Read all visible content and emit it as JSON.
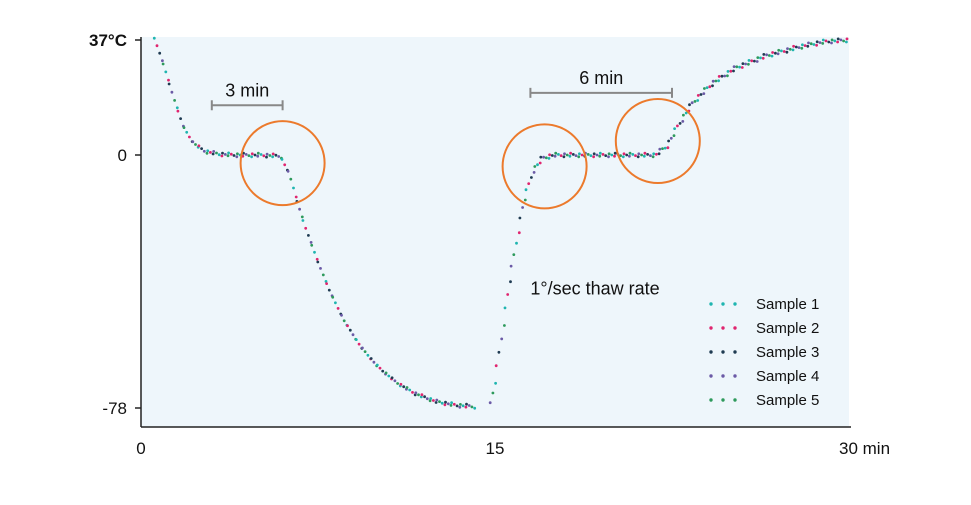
{
  "chart_data": {
    "type": "scatter",
    "title": "",
    "xlabel": "",
    "ylabel": "",
    "x_ticks": [
      {
        "value": 0,
        "label": "0"
      },
      {
        "value": 15,
        "label": "15"
      },
      {
        "value": 30,
        "label": "30 min"
      }
    ],
    "y_ticks": [
      {
        "value": 37,
        "label": "37°C"
      },
      {
        "value": 0,
        "label": "0"
      },
      {
        "value": -78,
        "label": "-78"
      }
    ],
    "xlim": [
      0,
      30
    ],
    "ylim": [
      -78,
      37
    ],
    "grid": false,
    "background_color": "#eef6fb",
    "legend_position": "bottom-right",
    "series": [
      {
        "name": "Sample 1",
        "color": "#1fb5b0"
      },
      {
        "name": "Sample 2",
        "color": "#e0256f"
      },
      {
        "name": "Sample 3",
        "color": "#1f3b52"
      },
      {
        "name": "Sample 4",
        "color": "#6b5aa6"
      },
      {
        "name": "Sample 5",
        "color": "#2e9a5c"
      }
    ],
    "curve_points": [
      [
        0.6,
        37
      ],
      [
        1.0,
        28
      ],
      [
        1.4,
        18
      ],
      [
        1.8,
        9
      ],
      [
        2.2,
        4
      ],
      [
        2.7,
        1.2
      ],
      [
        3.3,
        0.3
      ],
      [
        4.0,
        0
      ],
      [
        5.0,
        0
      ],
      [
        5.9,
        -0.3
      ],
      [
        6.3,
        -6
      ],
      [
        6.6,
        -14
      ],
      [
        7.0,
        -23
      ],
      [
        7.5,
        -33
      ],
      [
        8.0,
        -42
      ],
      [
        8.6,
        -51
      ],
      [
        9.3,
        -59
      ],
      [
        10.0,
        -65
      ],
      [
        10.8,
        -70
      ],
      [
        11.6,
        -73.5
      ],
      [
        12.5,
        -76
      ],
      [
        13.4,
        -77.2
      ],
      [
        14.1,
        -77.5
      ],
      [
        14.8,
        -77.5
      ],
      [
        15.0,
        -70
      ],
      [
        15.3,
        -55
      ],
      [
        15.6,
        -40
      ],
      [
        15.9,
        -27
      ],
      [
        16.2,
        -15
      ],
      [
        16.6,
        -5
      ],
      [
        17.0,
        -1
      ],
      [
        17.5,
        0
      ],
      [
        20.0,
        0
      ],
      [
        21.8,
        0
      ],
      [
        22.3,
        3
      ],
      [
        22.8,
        10
      ],
      [
        23.4,
        17
      ],
      [
        24.2,
        23
      ],
      [
        25.2,
        28
      ],
      [
        26.5,
        32
      ],
      [
        28.0,
        35
      ],
      [
        29.0,
        36.5
      ],
      [
        30.0,
        37
      ]
    ],
    "annotations": [
      {
        "text": "3 min",
        "x_start": 3,
        "x_end": 6,
        "y": 16
      },
      {
        "text": "6 min",
        "x_start": 16.5,
        "x_end": 22.5,
        "y": 20
      },
      {
        "text": "1°/sec thaw rate",
        "x": 16.5,
        "y": -43
      }
    ],
    "circles": [
      {
        "x": 6.0,
        "y": -2.5
      },
      {
        "x": 17.1,
        "y": -3.5
      },
      {
        "x": 21.9,
        "y": 4.5
      }
    ],
    "circle_color": "#ec7a2c",
    "bracket_color": "#888888"
  }
}
